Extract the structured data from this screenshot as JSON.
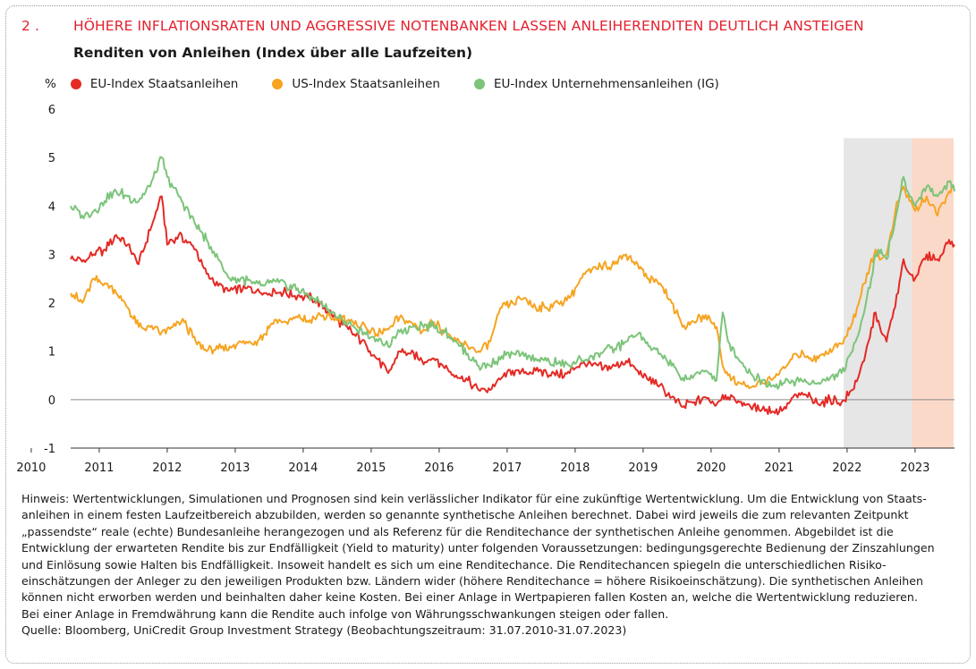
{
  "header": {
    "number": "2 .",
    "title": "HÖHERE INFLATIONSRATEN UND AGGRESSIVE NOTENBANKEN LASSEN ANLEIHERENDITEN DEUTLICH ANSTEIGEN",
    "subtitle": "Renditen von Anleihen (Index über alle Laufzeiten)"
  },
  "legend": {
    "unit": "%",
    "items": [
      {
        "label": "EU-Index Staatsanleihen",
        "color": "#e42a25"
      },
      {
        "label": "US-Index Staatsanleihen",
        "color": "#f6a421"
      },
      {
        "label": "EU-Index Unternehmensanleihen (IG)",
        "color": "#7cc47a"
      }
    ]
  },
  "chart_data": {
    "type": "line",
    "ylabel": "%",
    "xlim": [
      2010.58,
      2023.58
    ],
    "ylim": [
      -1,
      6
    ],
    "yticks": [
      "-1",
      "0",
      "1",
      "2",
      "3",
      "4",
      "5",
      "6"
    ],
    "xticks": [
      "2010",
      "2011",
      "2012",
      "2013",
      "2014",
      "2015",
      "2016",
      "2017",
      "2018",
      "2019",
      "2020",
      "2021",
      "2022",
      "2023"
    ],
    "shaded_regions": [
      {
        "from": 2021.95,
        "to": 2022.95,
        "color": "#e6e6e6"
      },
      {
        "from": 2022.95,
        "to": 2024.0,
        "color": "#fbd9c9"
      }
    ],
    "series": [
      {
        "name": "EU-Index Staatsanleihen",
        "color": "#e42a25",
        "points": [
          [
            2010.58,
            2.9
          ],
          [
            2010.75,
            2.85
          ],
          [
            2010.92,
            3.0
          ],
          [
            2011.08,
            3.1
          ],
          [
            2011.25,
            3.4
          ],
          [
            2011.42,
            3.2
          ],
          [
            2011.58,
            2.8
          ],
          [
            2011.75,
            3.5
          ],
          [
            2011.92,
            4.2
          ],
          [
            2012.0,
            3.2
          ],
          [
            2012.17,
            3.4
          ],
          [
            2012.42,
            3.1
          ],
          [
            2012.58,
            2.6
          ],
          [
            2012.75,
            2.35
          ],
          [
            2012.92,
            2.25
          ],
          [
            2013.17,
            2.3
          ],
          [
            2013.42,
            2.2
          ],
          [
            2013.58,
            2.25
          ],
          [
            2013.75,
            2.2
          ],
          [
            2013.92,
            2.15
          ],
          [
            2014.08,
            2.1
          ],
          [
            2014.25,
            2.0
          ],
          [
            2014.42,
            1.75
          ],
          [
            2014.58,
            1.55
          ],
          [
            2014.75,
            1.35
          ],
          [
            2014.92,
            1.15
          ],
          [
            2015.08,
            0.85
          ],
          [
            2015.25,
            0.55
          ],
          [
            2015.42,
            1.0
          ],
          [
            2015.58,
            0.95
          ],
          [
            2015.75,
            0.8
          ],
          [
            2015.92,
            0.85
          ],
          [
            2016.08,
            0.65
          ],
          [
            2016.25,
            0.5
          ],
          [
            2016.42,
            0.4
          ],
          [
            2016.58,
            0.2
          ],
          [
            2016.75,
            0.2
          ],
          [
            2016.92,
            0.45
          ],
          [
            2017.08,
            0.6
          ],
          [
            2017.25,
            0.55
          ],
          [
            2017.42,
            0.6
          ],
          [
            2017.58,
            0.55
          ],
          [
            2017.75,
            0.5
          ],
          [
            2017.92,
            0.55
          ],
          [
            2018.08,
            0.75
          ],
          [
            2018.25,
            0.7
          ],
          [
            2018.42,
            0.65
          ],
          [
            2018.58,
            0.7
          ],
          [
            2018.75,
            0.8
          ],
          [
            2018.92,
            0.6
          ],
          [
            2019.08,
            0.4
          ],
          [
            2019.25,
            0.3
          ],
          [
            2019.42,
            0.05
          ],
          [
            2019.58,
            -0.15
          ],
          [
            2019.75,
            -0.05
          ],
          [
            2019.92,
            0.05
          ],
          [
            2020.08,
            -0.1
          ],
          [
            2020.17,
            0.1
          ],
          [
            2020.25,
            0.05
          ],
          [
            2020.42,
            -0.05
          ],
          [
            2020.58,
            -0.15
          ],
          [
            2020.75,
            -0.2
          ],
          [
            2020.92,
            -0.25
          ],
          [
            2021.08,
            -0.15
          ],
          [
            2021.25,
            0.1
          ],
          [
            2021.42,
            0.05
          ],
          [
            2021.58,
            -0.1
          ],
          [
            2021.75,
            0.0
          ],
          [
            2021.92,
            -0.05
          ],
          [
            2022.08,
            0.2
          ],
          [
            2022.25,
            0.8
          ],
          [
            2022.42,
            1.8
          ],
          [
            2022.5,
            1.4
          ],
          [
            2022.58,
            1.2
          ],
          [
            2022.75,
            2.2
          ],
          [
            2022.83,
            2.9
          ],
          [
            2022.92,
            2.6
          ],
          [
            2023.0,
            2.5
          ],
          [
            2023.17,
            3.0
          ],
          [
            2023.33,
            2.9
          ],
          [
            2023.5,
            3.3
          ],
          [
            2023.58,
            3.2
          ]
        ]
      },
      {
        "name": "US-Index Staatsanleihen",
        "color": "#f6a421",
        "points": [
          [
            2010.58,
            2.2
          ],
          [
            2010.75,
            2.0
          ],
          [
            2010.92,
            2.5
          ],
          [
            2011.08,
            2.4
          ],
          [
            2011.25,
            2.2
          ],
          [
            2011.42,
            1.9
          ],
          [
            2011.58,
            1.5
          ],
          [
            2011.75,
            1.5
          ],
          [
            2011.92,
            1.4
          ],
          [
            2012.08,
            1.5
          ],
          [
            2012.25,
            1.6
          ],
          [
            2012.42,
            1.2
          ],
          [
            2012.58,
            1.0
          ],
          [
            2012.75,
            1.05
          ],
          [
            2012.92,
            1.1
          ],
          [
            2013.08,
            1.2
          ],
          [
            2013.25,
            1.15
          ],
          [
            2013.42,
            1.35
          ],
          [
            2013.58,
            1.65
          ],
          [
            2013.75,
            1.6
          ],
          [
            2013.92,
            1.7
          ],
          [
            2014.08,
            1.6
          ],
          [
            2014.25,
            1.75
          ],
          [
            2014.42,
            1.65
          ],
          [
            2014.58,
            1.7
          ],
          [
            2014.75,
            1.55
          ],
          [
            2014.92,
            1.5
          ],
          [
            2015.08,
            1.35
          ],
          [
            2015.25,
            1.45
          ],
          [
            2015.42,
            1.7
          ],
          [
            2015.58,
            1.6
          ],
          [
            2015.75,
            1.4
          ],
          [
            2015.92,
            1.6
          ],
          [
            2016.08,
            1.4
          ],
          [
            2016.25,
            1.2
          ],
          [
            2016.42,
            1.1
          ],
          [
            2016.58,
            1.0
          ],
          [
            2016.75,
            1.2
          ],
          [
            2016.92,
            1.9
          ],
          [
            2017.08,
            2.0
          ],
          [
            2017.25,
            2.1
          ],
          [
            2017.42,
            1.9
          ],
          [
            2017.58,
            1.9
          ],
          [
            2017.75,
            2.0
          ],
          [
            2017.92,
            2.1
          ],
          [
            2018.08,
            2.5
          ],
          [
            2018.25,
            2.7
          ],
          [
            2018.42,
            2.8
          ],
          [
            2018.58,
            2.8
          ],
          [
            2018.75,
            3.0
          ],
          [
            2018.92,
            2.8
          ],
          [
            2019.08,
            2.5
          ],
          [
            2019.25,
            2.4
          ],
          [
            2019.42,
            2.0
          ],
          [
            2019.58,
            1.5
          ],
          [
            2019.75,
            1.6
          ],
          [
            2019.92,
            1.75
          ],
          [
            2020.08,
            1.5
          ],
          [
            2020.17,
            0.7
          ],
          [
            2020.25,
            0.5
          ],
          [
            2020.42,
            0.35
          ],
          [
            2020.58,
            0.25
          ],
          [
            2020.75,
            0.35
          ],
          [
            2020.92,
            0.45
          ],
          [
            2021.08,
            0.65
          ],
          [
            2021.25,
            0.95
          ],
          [
            2021.42,
            0.9
          ],
          [
            2021.58,
            0.85
          ],
          [
            2021.75,
            1.05
          ],
          [
            2021.92,
            1.15
          ],
          [
            2022.08,
            1.6
          ],
          [
            2022.25,
            2.4
          ],
          [
            2022.42,
            3.1
          ],
          [
            2022.5,
            2.9
          ],
          [
            2022.58,
            3.0
          ],
          [
            2022.75,
            4.1
          ],
          [
            2022.83,
            4.4
          ],
          [
            2022.92,
            4.1
          ],
          [
            2023.0,
            3.9
          ],
          [
            2023.17,
            4.2
          ],
          [
            2023.33,
            3.8
          ],
          [
            2023.5,
            4.3
          ],
          [
            2023.58,
            4.4
          ]
        ]
      },
      {
        "name": "EU-Index Unternehmensanleihen (IG)",
        "color": "#7cc47a",
        "points": [
          [
            2010.58,
            4.0
          ],
          [
            2010.75,
            3.8
          ],
          [
            2010.92,
            3.9
          ],
          [
            2011.08,
            4.1
          ],
          [
            2011.25,
            4.3
          ],
          [
            2011.42,
            4.2
          ],
          [
            2011.58,
            4.1
          ],
          [
            2011.75,
            4.4
          ],
          [
            2011.92,
            5.0
          ],
          [
            2012.0,
            4.6
          ],
          [
            2012.17,
            4.2
          ],
          [
            2012.42,
            3.6
          ],
          [
            2012.58,
            3.3
          ],
          [
            2012.75,
            2.9
          ],
          [
            2012.92,
            2.5
          ],
          [
            2013.08,
            2.5
          ],
          [
            2013.25,
            2.4
          ],
          [
            2013.42,
            2.35
          ],
          [
            2013.58,
            2.45
          ],
          [
            2013.75,
            2.35
          ],
          [
            2013.92,
            2.3
          ],
          [
            2014.08,
            2.15
          ],
          [
            2014.25,
            2.0
          ],
          [
            2014.42,
            1.8
          ],
          [
            2014.58,
            1.65
          ],
          [
            2014.75,
            1.5
          ],
          [
            2014.92,
            1.35
          ],
          [
            2015.08,
            1.25
          ],
          [
            2015.25,
            1.1
          ],
          [
            2015.42,
            1.4
          ],
          [
            2015.58,
            1.5
          ],
          [
            2015.75,
            1.55
          ],
          [
            2015.92,
            1.5
          ],
          [
            2016.08,
            1.4
          ],
          [
            2016.25,
            1.2
          ],
          [
            2016.42,
            0.95
          ],
          [
            2016.58,
            0.7
          ],
          [
            2016.75,
            0.7
          ],
          [
            2016.92,
            0.9
          ],
          [
            2017.08,
            0.95
          ],
          [
            2017.25,
            0.9
          ],
          [
            2017.42,
            0.85
          ],
          [
            2017.58,
            0.8
          ],
          [
            2017.75,
            0.75
          ],
          [
            2017.92,
            0.7
          ],
          [
            2018.08,
            0.85
          ],
          [
            2018.25,
            0.9
          ],
          [
            2018.42,
            1.0
          ],
          [
            2018.58,
            1.05
          ],
          [
            2018.75,
            1.2
          ],
          [
            2018.92,
            1.35
          ],
          [
            2019.08,
            1.1
          ],
          [
            2019.25,
            0.95
          ],
          [
            2019.42,
            0.7
          ],
          [
            2019.58,
            0.45
          ],
          [
            2019.75,
            0.5
          ],
          [
            2019.92,
            0.6
          ],
          [
            2020.08,
            0.4
          ],
          [
            2020.17,
            1.8
          ],
          [
            2020.25,
            1.2
          ],
          [
            2020.42,
            0.8
          ],
          [
            2020.58,
            0.55
          ],
          [
            2020.75,
            0.4
          ],
          [
            2020.92,
            0.3
          ],
          [
            2021.08,
            0.35
          ],
          [
            2021.25,
            0.4
          ],
          [
            2021.42,
            0.35
          ],
          [
            2021.58,
            0.35
          ],
          [
            2021.75,
            0.45
          ],
          [
            2021.92,
            0.55
          ],
          [
            2022.08,
            1.0
          ],
          [
            2022.25,
            1.8
          ],
          [
            2022.42,
            3.0
          ],
          [
            2022.5,
            3.1
          ],
          [
            2022.58,
            2.9
          ],
          [
            2022.75,
            4.0
          ],
          [
            2022.83,
            4.6
          ],
          [
            2022.92,
            4.2
          ],
          [
            2023.0,
            4.0
          ],
          [
            2023.17,
            4.4
          ],
          [
            2023.33,
            4.2
          ],
          [
            2023.5,
            4.5
          ],
          [
            2023.58,
            4.3
          ]
        ]
      }
    ]
  },
  "notes": {
    "lines": [
      "Hinweis: Wertentwicklungen, Simulationen und Prognosen sind kein verlässlicher Indikator für eine zukünftige Wertentwicklung. Um die Entwicklung von Staats-",
      "anleihen in einem festen Laufzeitbereich abzubilden, werden so genannte synthetische Anleihen berechnet. Dabei wird jeweils die zum relevanten Zeitpunkt",
      "„passendste“ reale (echte) Bundesanleihe herangezogen und als Referenz für die Renditechance der synthetischen Anleihe genommen. Abgebildet ist die",
      "Entwicklung der erwarteten Rendite bis zur Endfälligkeit (Yield to maturity) unter folgenden Voraussetzungen: bedingungsgerechte Bedienung der Zinszahlungen",
      "und Einlösung sowie Halten bis Endfälligkeit. Insoweit handelt es sich um eine Renditechance. Die Renditechancen spiegeln die unterschiedlichen Risiko-",
      "einschätzungen der Anleger zu den jeweiligen Produkten bzw. Ländern wider (höhere Renditechance = höhere Risikoeinschätzung). Die synthetischen Anleihen",
      "können nicht erworben werden und beinhalten daher keine Kosten. Bei einer Anlage in Wertpapieren fallen Kosten an, welche die Wertentwicklung reduzieren.",
      "Bei einer Anlage in Fremdwährung kann die Rendite auch infolge von Währungsschwankungen steigen oder fallen."
    ],
    "source": "Quelle: Bloomberg, UniCredit Group Investment Strategy (Beobachtungszeitraum: 31.07.2010-31.07.2023)"
  }
}
